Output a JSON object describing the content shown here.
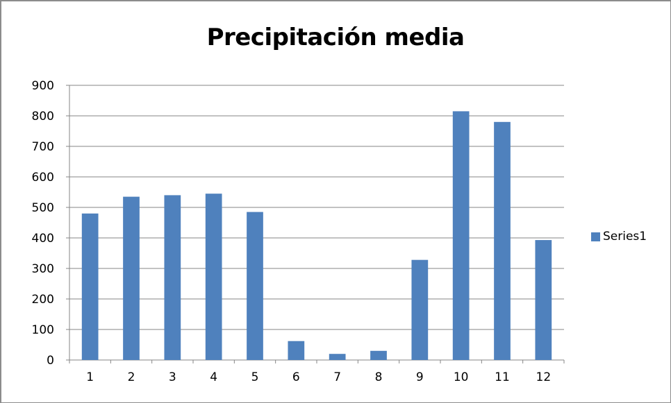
{
  "chart_data": {
    "type": "bar",
    "title": "Precipitación media",
    "categories": [
      "1",
      "2",
      "3",
      "4",
      "5",
      "6",
      "7",
      "8",
      "9",
      "10",
      "11",
      "12"
    ],
    "series": [
      {
        "name": "Series1",
        "color": "#4f81bd",
        "values": [
          480,
          535,
          540,
          545,
          485,
          62,
          20,
          30,
          328,
          815,
          780,
          393
        ]
      }
    ],
    "ylim": [
      0,
      900
    ],
    "yticks": [
      0,
      100,
      200,
      300,
      400,
      500,
      600,
      700,
      800,
      900
    ],
    "grid": true,
    "legend_position": "right"
  }
}
